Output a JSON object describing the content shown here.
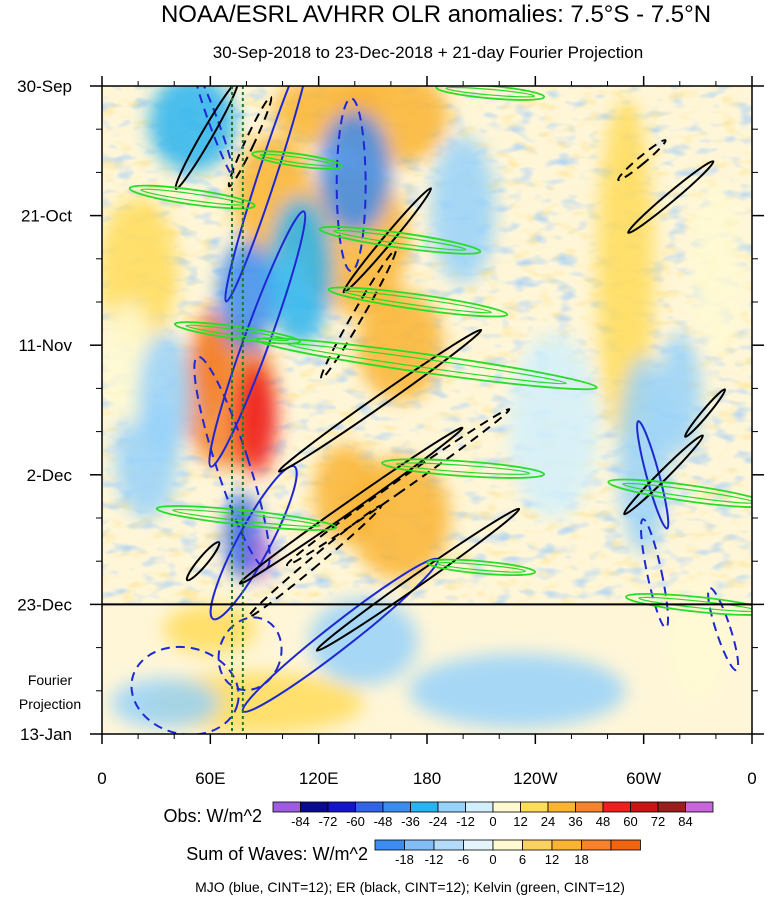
{
  "chart_data": {
    "type": "heatmap",
    "title": "NOAA/ESRL AVHRR OLR anomalies: 7.5°S - 7.5°N",
    "subtitle": "30-Sep-2018 to 23-Dec-2018 + 21-day Fourier Projection",
    "x_ticks": [
      "0",
      "60E",
      "120E",
      "180",
      "120W",
      "60W",
      "0"
    ],
    "x_tick_values": [
      0,
      60,
      120,
      180,
      240,
      300,
      360
    ],
    "xlim": [
      0,
      360
    ],
    "y_ticks": [
      "30-Sep",
      "21-Oct",
      "11-Nov",
      "2-Dec",
      "23-Dec",
      "13-Jan"
    ],
    "y_tick_values": [
      0,
      21,
      42,
      63,
      84,
      105
    ],
    "ylim": [
      0,
      105
    ],
    "projection_start_day": 84,
    "projection_label": [
      "Fourier",
      "Projection"
    ],
    "obs_colorbar": {
      "label": "Obs: W/m^2",
      "levels": [
        "-84",
        "-72",
        "-60",
        "-48",
        "-36",
        "-24",
        "-12",
        "0",
        "12",
        "24",
        "36",
        "48",
        "60",
        "72",
        "84"
      ],
      "colors": [
        "#a05ce0",
        "#0a0a8c",
        "#1414c8",
        "#3264e6",
        "#3c8cf0",
        "#28b4f0",
        "#96d2fa",
        "#d2f0fc",
        "#fffad2",
        "#ffdc5a",
        "#fab432",
        "#f5822d",
        "#f01e1e",
        "#c81414",
        "#9b1e1e",
        "#c864dc"
      ]
    },
    "waves_colorbar": {
      "label": "Sum of Waves: W/m^2",
      "levels": [
        "-18",
        "-12",
        "-6",
        "0",
        "6",
        "12",
        "18"
      ],
      "colors": [
        "#3c8cf0",
        "#82bef5",
        "#b4dcfa",
        "#e6f5fc",
        "#fffad2",
        "#fad264",
        "#fab432",
        "#f5822d",
        "#f06414"
      ]
    },
    "wave_legend": "MJO (blue, CINT=12); ER (black, CINT=12); Kelvin (green, CINT=12)",
    "mjo_reference_lines_x": [
      72,
      78
    ],
    "series": [
      {
        "name": "MJO",
        "color": "#1e28d2",
        "contours": [
          {
            "cx": 62,
            "cy": 6,
            "rx": 2.5,
            "ry": 9,
            "angle": -20,
            "sign": -1
          },
          {
            "cx": 92,
            "cy": 14,
            "rx": 5,
            "ry": 22,
            "angle": 18,
            "sign": 1
          },
          {
            "cx": 138,
            "cy": 16,
            "rx": 8,
            "ry": 14,
            "angle": 0,
            "sign": -1
          },
          {
            "cx": 86,
            "cy": 41,
            "rx": 7,
            "ry": 22,
            "angle": 20,
            "sign": 1
          },
          {
            "cx": 72,
            "cy": 61,
            "rx": 9,
            "ry": 18,
            "angle": -18,
            "sign": -1
          },
          {
            "cx": 84,
            "cy": 74,
            "rx": 9,
            "ry": 14,
            "angle": 28,
            "sign": 1
          },
          {
            "cx": 132,
            "cy": 89,
            "rx": 7,
            "ry": 20,
            "angle": 52,
            "sign": 1
          },
          {
            "cx": 82,
            "cy": 92,
            "rx": 17,
            "ry": 6,
            "angle": 20,
            "sign": -1
          },
          {
            "cx": 46,
            "cy": 98,
            "rx": 30,
            "ry": 7,
            "angle": 14,
            "sign": -1
          },
          {
            "cx": 306,
            "cy": 79,
            "rx": 4,
            "ry": 9,
            "angle": -12,
            "sign": -1
          },
          {
            "cx": 305,
            "cy": 63,
            "rx": 3.5,
            "ry": 9,
            "angle": -15,
            "sign": 1
          },
          {
            "cx": 344,
            "cy": 88,
            "rx": 4,
            "ry": 7,
            "angle": -18,
            "sign": -1
          }
        ]
      },
      {
        "name": "ER",
        "color": "#000000",
        "contours": [
          {
            "cx": 58,
            "cy": 8,
            "rx": 3,
            "ry": 10,
            "angle": 30,
            "sign": 1
          },
          {
            "cx": 82,
            "cy": 9,
            "rx": 2.5,
            "ry": 8,
            "angle": 25,
            "sign": -1
          },
          {
            "cx": 158,
            "cy": 25,
            "rx": 2.5,
            "ry": 11,
            "angle": 40,
            "sign": 1
          },
          {
            "cx": 142,
            "cy": 37,
            "rx": 2.8,
            "ry": 12,
            "angle": 30,
            "sign": -1
          },
          {
            "cx": 154,
            "cy": 51,
            "rx": 3,
            "ry": 20,
            "angle": 55,
            "sign": 1
          },
          {
            "cx": 164,
            "cy": 65,
            "rx": 3,
            "ry": 22,
            "angle": 55,
            "sign": -1
          },
          {
            "cx": 138,
            "cy": 68,
            "rx": 2.8,
            "ry": 22,
            "angle": 55,
            "sign": 1
          },
          {
            "cx": 118,
            "cy": 77,
            "rx": 2.6,
            "ry": 14,
            "angle": 50,
            "sign": -1
          },
          {
            "cx": 175,
            "cy": 80,
            "rx": 3.2,
            "ry": 20,
            "angle": 55,
            "sign": 1
          },
          {
            "cx": 56,
            "cy": 77,
            "rx": 2.5,
            "ry": 4,
            "angle": 40,
            "sign": 1
          },
          {
            "cx": 315,
            "cy": 18,
            "rx": 2.5,
            "ry": 9,
            "angle": 50,
            "sign": 1
          },
          {
            "cx": 299,
            "cy": 12,
            "rx": 2,
            "ry": 5,
            "angle": 50,
            "sign": -1
          },
          {
            "cx": 311,
            "cy": 63,
            "rx": 2.5,
            "ry": 9,
            "angle": 45,
            "sign": 1
          },
          {
            "cx": 334,
            "cy": 53,
            "rx": 1.8,
            "ry": 5,
            "angle": 40,
            "sign": 1
          }
        ]
      },
      {
        "name": "Kelvin",
        "color": "#28dc28",
        "contours": [
          {
            "cx": 215,
            "cy": 1,
            "rx": 30,
            "ry": 1,
            "angle": 5,
            "sign": 1
          },
          {
            "cx": 108,
            "cy": 12,
            "rx": 25,
            "ry": 1,
            "angle": 8,
            "sign": 1
          },
          {
            "cx": 50,
            "cy": 18,
            "rx": 35,
            "ry": 1.2,
            "angle": 8,
            "sign": 1
          },
          {
            "cx": 165,
            "cy": 25,
            "rx": 45,
            "ry": 1.2,
            "angle": 8,
            "sign": 1
          },
          {
            "cx": 175,
            "cy": 35,
            "rx": 50,
            "ry": 1.2,
            "angle": 8,
            "sign": 1
          },
          {
            "cx": 180,
            "cy": 45,
            "rx": 95,
            "ry": 1.5,
            "angle": 8,
            "sign": 1
          },
          {
            "cx": 75,
            "cy": 40,
            "rx": 35,
            "ry": 1,
            "angle": 8,
            "sign": 1
          },
          {
            "cx": 200,
            "cy": 62,
            "rx": 45,
            "ry": 1.2,
            "angle": 4,
            "sign": 1
          },
          {
            "cx": 80,
            "cy": 70,
            "rx": 50,
            "ry": 1.2,
            "angle": 6,
            "sign": 1
          },
          {
            "cx": 325,
            "cy": 66,
            "rx": 45,
            "ry": 1.3,
            "angle": 8,
            "sign": 1
          },
          {
            "cx": 210,
            "cy": 78,
            "rx": 30,
            "ry": 1,
            "angle": 5,
            "sign": 1
          },
          {
            "cx": 330,
            "cy": 84,
            "rx": 40,
            "ry": 1.2,
            "angle": 6,
            "sign": 1
          }
        ]
      }
    ],
    "field_anomalies": [
      {
        "x": 70,
        "y": 50,
        "rx": 26,
        "ry": 12,
        "v": 40
      },
      {
        "x": 85,
        "y": 54,
        "rx": 12,
        "ry": 9,
        "v": 60
      },
      {
        "x": 60,
        "y": 44,
        "rx": 10,
        "ry": 8,
        "v": 45
      },
      {
        "x": 95,
        "y": 18,
        "rx": 22,
        "ry": 10,
        "v": 25
      },
      {
        "x": 125,
        "y": 4,
        "rx": 30,
        "ry": 6,
        "v": 32
      },
      {
        "x": 160,
        "y": 5,
        "rx": 32,
        "ry": 8,
        "v": 30
      },
      {
        "x": 140,
        "y": 25,
        "rx": 30,
        "ry": 12,
        "v": 32
      },
      {
        "x": 165,
        "y": 42,
        "rx": 24,
        "ry": 9,
        "v": 30
      },
      {
        "x": 165,
        "y": 70,
        "rx": 28,
        "ry": 10,
        "v": 36
      },
      {
        "x": 135,
        "y": 66,
        "rx": 18,
        "ry": 8,
        "v": 30
      },
      {
        "x": 60,
        "y": 88,
        "rx": 26,
        "ry": 4,
        "v": 24
      },
      {
        "x": 85,
        "y": 100,
        "rx": 60,
        "ry": 5,
        "v": 14
      },
      {
        "x": 290,
        "y": 30,
        "rx": 16,
        "ry": 28,
        "v": 18
      },
      {
        "x": 340,
        "y": 30,
        "rx": 14,
        "ry": 14,
        "v": 12
      },
      {
        "x": 330,
        "y": 90,
        "rx": 16,
        "ry": 10,
        "v": 12
      },
      {
        "x": 20,
        "y": 30,
        "rx": 22,
        "ry": 12,
        "v": 14
      },
      {
        "x": 25,
        "y": 60,
        "rx": 18,
        "ry": 10,
        "v": -22
      },
      {
        "x": 15,
        "y": 45,
        "rx": 15,
        "ry": 10,
        "v": 12
      },
      {
        "x": 80,
        "y": 34,
        "rx": 16,
        "ry": 9,
        "v": -42
      },
      {
        "x": 78,
        "y": 73,
        "rx": 10,
        "ry": 7,
        "v": -58
      },
      {
        "x": 88,
        "y": 76,
        "rx": 5,
        "ry": 4,
        "v": -84
      },
      {
        "x": 140,
        "y": 14,
        "rx": 20,
        "ry": 10,
        "v": -38
      },
      {
        "x": 110,
        "y": 30,
        "rx": 18,
        "ry": 12,
        "v": -30
      },
      {
        "x": 50,
        "y": 6,
        "rx": 24,
        "ry": 8,
        "v": -26
      },
      {
        "x": 35,
        "y": 50,
        "rx": 15,
        "ry": 10,
        "v": -18
      },
      {
        "x": 145,
        "y": 90,
        "rx": 30,
        "ry": 7,
        "v": -22
      },
      {
        "x": 200,
        "y": 20,
        "rx": 18,
        "ry": 12,
        "v": -14
      },
      {
        "x": 250,
        "y": 55,
        "rx": 25,
        "ry": 15,
        "v": -10
      },
      {
        "x": 230,
        "y": 98,
        "rx": 60,
        "ry": 6,
        "v": -14
      },
      {
        "x": 300,
        "y": 60,
        "rx": 14,
        "ry": 16,
        "v": -18
      },
      {
        "x": 320,
        "y": 50,
        "rx": 12,
        "ry": 10,
        "v": -22
      },
      {
        "x": 35,
        "y": 100,
        "rx": 30,
        "ry": 4,
        "v": -12
      }
    ]
  }
}
